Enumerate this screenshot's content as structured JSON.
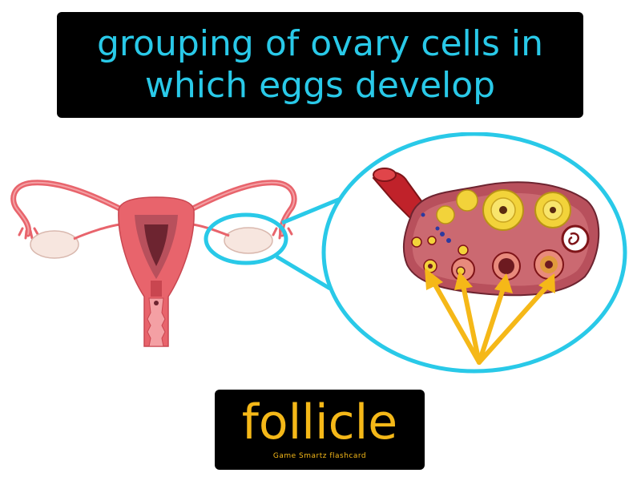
{
  "definition": {
    "text": "grouping of ovary cells in which eggs develop",
    "color": "#29c9e8"
  },
  "term": {
    "word": "follicle",
    "credit": "Game Smartz flashcard",
    "color": "#f5b818"
  },
  "illustration": {
    "icons": [
      "uterus-icon",
      "ovary-cross-section-icon",
      "magnifier-circle",
      "arrow-icon"
    ],
    "colors": {
      "highlight": "#29c9e8",
      "arrow": "#f5b818",
      "uterus": "#e8646c",
      "ovary": "#b8505c"
    }
  }
}
